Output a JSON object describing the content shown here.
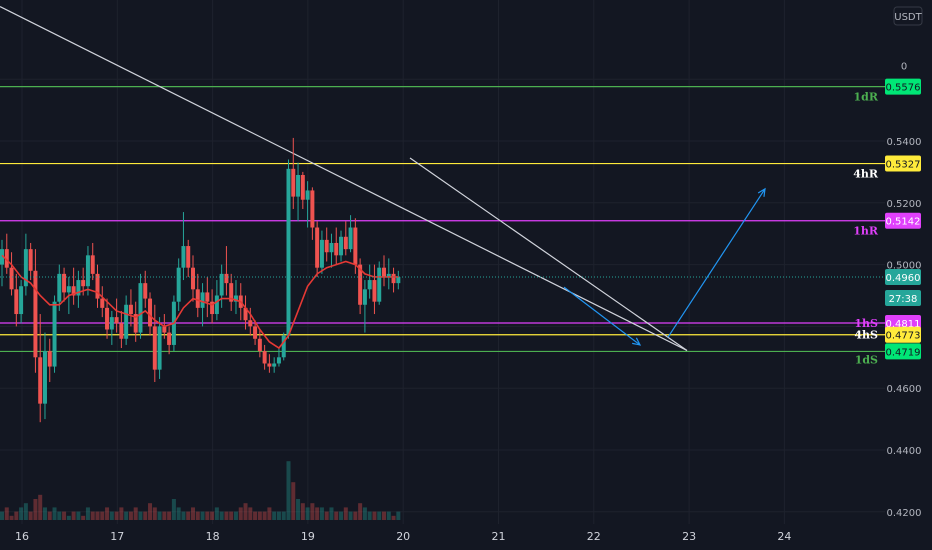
{
  "currency": "USDT",
  "chart_data": {
    "type": "candlestick",
    "x_ticks": [
      "16",
      "17",
      "18",
      "19",
      "20",
      "21",
      "22",
      "23",
      "24"
    ],
    "y_ticks": [
      "0.4200",
      "0.4400",
      "0.4600",
      "0.5000",
      "0.5200",
      "0.5400"
    ],
    "y_partial_top": "0",
    "ylim": [
      0.418,
      0.586
    ],
    "grid": true,
    "last_price": "0.4960",
    "countdown": "27:38",
    "levels": [
      {
        "key": "1dR",
        "price": 0.5576,
        "label": "0.5576",
        "zone": "1dR",
        "color": "#4caf50",
        "badge_bg": "#00e676",
        "badge_fg": "#131722"
      },
      {
        "key": "4hR",
        "price": 0.5327,
        "label": "0.5327",
        "zone": "4hR",
        "color": "#ffeb3b",
        "badge_bg": "#ffeb3b",
        "badge_fg": "#131722"
      },
      {
        "key": "1hR",
        "price": 0.5142,
        "label": "0.5142",
        "zone": "1hR",
        "color": "#e040fb",
        "badge_bg": "#e040fb",
        "badge_fg": "#ffffff"
      },
      {
        "key": "1hS",
        "price": 0.4811,
        "label": "0.4811",
        "zone": "1hS",
        "color": "#e040fb",
        "badge_bg": "#e040fb",
        "badge_fg": "#ffffff"
      },
      {
        "key": "4hS",
        "price": 0.4773,
        "label": "0.4773",
        "zone": "4hS",
        "color": "#ffeb3b",
        "badge_bg": "#ffeb3b",
        "badge_fg": "#131722"
      },
      {
        "key": "1dS",
        "price": 0.4719,
        "label": "0.4719",
        "zone": "1dS",
        "color": "#4caf50",
        "badge_bg": "#00e676",
        "badge_fg": "#131722"
      }
    ],
    "ohlc": [
      [
        0,
        0.5,
        0.508,
        0.493,
        0.505
      ],
      [
        0.5,
        0.505,
        0.51,
        0.497,
        0.499
      ],
      [
        1,
        0.499,
        0.504,
        0.49,
        0.492
      ],
      [
        1.5,
        0.492,
        0.497,
        0.48,
        0.484
      ],
      [
        2,
        0.484,
        0.495,
        0.481,
        0.493
      ],
      [
        2.5,
        0.493,
        0.51,
        0.49,
        0.505
      ],
      [
        3,
        0.505,
        0.507,
        0.495,
        0.498
      ],
      [
        3.5,
        0.498,
        0.505,
        0.465,
        0.47
      ],
      [
        4,
        0.47,
        0.484,
        0.449,
        0.455
      ],
      [
        4.5,
        0.455,
        0.478,
        0.45,
        0.472
      ],
      [
        5,
        0.472,
        0.476,
        0.462,
        0.467
      ],
      [
        5.5,
        0.467,
        0.49,
        0.465,
        0.488
      ],
      [
        6,
        0.488,
        0.5,
        0.485,
        0.497
      ],
      [
        6.5,
        0.497,
        0.499,
        0.488,
        0.491
      ],
      [
        7,
        0.491,
        0.496,
        0.484,
        0.493
      ],
      [
        7.5,
        0.493,
        0.499,
        0.487,
        0.49
      ],
      [
        8,
        0.49,
        0.498,
        0.486,
        0.495
      ],
      [
        8.5,
        0.495,
        0.499,
        0.49,
        0.493
      ],
      [
        9,
        0.493,
        0.506,
        0.49,
        0.503
      ],
      [
        9.5,
        0.503,
        0.507,
        0.495,
        0.497
      ],
      [
        10,
        0.497,
        0.5,
        0.486,
        0.489
      ],
      [
        10.5,
        0.489,
        0.493,
        0.483,
        0.486
      ],
      [
        11,
        0.486,
        0.489,
        0.476,
        0.479
      ],
      [
        11.5,
        0.479,
        0.485,
        0.474,
        0.483
      ],
      [
        12,
        0.483,
        0.489,
        0.478,
        0.481
      ],
      [
        12.5,
        0.481,
        0.485,
        0.473,
        0.476
      ],
      [
        13,
        0.476,
        0.49,
        0.474,
        0.487
      ],
      [
        13.5,
        0.487,
        0.492,
        0.48,
        0.484
      ],
      [
        14,
        0.484,
        0.488,
        0.475,
        0.478
      ],
      [
        14.5,
        0.478,
        0.497,
        0.476,
        0.494
      ],
      [
        15,
        0.494,
        0.498,
        0.486,
        0.489
      ],
      [
        15.5,
        0.489,
        0.491,
        0.477,
        0.48
      ],
      [
        16,
        0.48,
        0.487,
        0.462,
        0.466
      ],
      [
        16.5,
        0.466,
        0.483,
        0.463,
        0.48
      ],
      [
        17,
        0.48,
        0.484,
        0.476,
        0.478
      ],
      [
        17.5,
        0.478,
        0.48,
        0.471,
        0.474
      ],
      [
        18,
        0.474,
        0.49,
        0.472,
        0.488
      ],
      [
        18.5,
        0.488,
        0.502,
        0.485,
        0.499
      ],
      [
        19,
        0.499,
        0.517,
        0.495,
        0.506
      ],
      [
        19.5,
        0.506,
        0.508,
        0.496,
        0.499
      ],
      [
        20,
        0.499,
        0.503,
        0.488,
        0.492
      ],
      [
        20.5,
        0.492,
        0.497,
        0.483,
        0.486
      ],
      [
        21,
        0.486,
        0.494,
        0.48,
        0.491
      ],
      [
        21.5,
        0.491,
        0.496,
        0.483,
        0.488
      ],
      [
        22,
        0.488,
        0.492,
        0.481,
        0.484
      ],
      [
        22.5,
        0.484,
        0.495,
        0.482,
        0.49
      ],
      [
        23,
        0.49,
        0.5,
        0.486,
        0.497
      ],
      [
        23.5,
        0.497,
        0.506,
        0.49,
        0.494
      ],
      [
        24,
        0.494,
        0.497,
        0.485,
        0.488
      ],
      [
        24.5,
        0.488,
        0.495,
        0.484,
        0.49
      ],
      [
        25,
        0.49,
        0.494,
        0.482,
        0.486
      ],
      [
        25.5,
        0.486,
        0.49,
        0.479,
        0.482
      ],
      [
        26,
        0.482,
        0.486,
        0.477,
        0.48
      ],
      [
        26.5,
        0.48,
        0.482,
        0.474,
        0.476
      ],
      [
        27,
        0.476,
        0.479,
        0.47,
        0.472
      ],
      [
        27.5,
        0.472,
        0.474,
        0.466,
        0.468
      ],
      [
        28,
        0.468,
        0.471,
        0.465,
        0.467
      ],
      [
        28.5,
        0.467,
        0.47,
        0.465,
        0.468
      ],
      [
        29,
        0.468,
        0.473,
        0.467,
        0.47
      ],
      [
        29.5,
        0.47,
        0.478,
        0.469,
        0.477
      ],
      [
        30,
        0.477,
        0.534,
        0.476,
        0.531
      ],
      [
        30.5,
        0.531,
        0.541,
        0.518,
        0.522
      ],
      [
        31,
        0.522,
        0.533,
        0.514,
        0.529
      ],
      [
        31.5,
        0.529,
        0.53,
        0.518,
        0.521
      ],
      [
        32,
        0.521,
        0.527,
        0.512,
        0.524
      ],
      [
        32.5,
        0.524,
        0.525,
        0.508,
        0.512
      ],
      [
        33,
        0.512,
        0.514,
        0.496,
        0.499
      ],
      [
        33.5,
        0.499,
        0.511,
        0.497,
        0.508
      ],
      [
        34,
        0.508,
        0.512,
        0.501,
        0.504
      ],
      [
        34.5,
        0.504,
        0.51,
        0.499,
        0.507
      ],
      [
        35,
        0.507,
        0.512,
        0.5,
        0.503
      ],
      [
        35.5,
        0.503,
        0.511,
        0.501,
        0.509
      ],
      [
        36,
        0.509,
        0.514,
        0.503,
        0.505
      ],
      [
        36.5,
        0.505,
        0.516,
        0.504,
        0.512
      ],
      [
        37,
        0.512,
        0.515,
        0.497,
        0.5
      ],
      [
        37.5,
        0.5,
        0.502,
        0.484,
        0.487
      ],
      [
        38,
        0.487,
        0.495,
        0.478,
        0.492
      ],
      [
        38.5,
        0.492,
        0.5,
        0.489,
        0.495
      ],
      [
        39,
        0.495,
        0.5,
        0.484,
        0.488
      ],
      [
        39.5,
        0.488,
        0.501,
        0.487,
        0.499
      ],
      [
        40,
        0.499,
        0.503,
        0.493,
        0.496
      ],
      [
        40.5,
        0.496,
        0.502,
        0.492,
        0.497
      ],
      [
        41,
        0.497,
        0.499,
        0.491,
        0.494
      ],
      [
        41.5,
        0.494,
        0.498,
        0.492,
        0.496
      ]
    ],
    "ema": [
      [
        0,
        0.503
      ],
      [
        1,
        0.5
      ],
      [
        2,
        0.496
      ],
      [
        3,
        0.494
      ],
      [
        4,
        0.49
      ],
      [
        5,
        0.487
      ],
      [
        6,
        0.487
      ],
      [
        7,
        0.49
      ],
      [
        8,
        0.491
      ],
      [
        9,
        0.492
      ],
      [
        10,
        0.491
      ],
      [
        11,
        0.488
      ],
      [
        12,
        0.485
      ],
      [
        13,
        0.484
      ],
      [
        14,
        0.483
      ],
      [
        15,
        0.485
      ],
      [
        16,
        0.482
      ],
      [
        17,
        0.48
      ],
      [
        18,
        0.481
      ],
      [
        19,
        0.486
      ],
      [
        20,
        0.489
      ],
      [
        21,
        0.488
      ],
      [
        22,
        0.487
      ],
      [
        23,
        0.489
      ],
      [
        24,
        0.489
      ],
      [
        25,
        0.488
      ],
      [
        26,
        0.484
      ],
      [
        27,
        0.479
      ],
      [
        28,
        0.475
      ],
      [
        29,
        0.473
      ],
      [
        30,
        0.477
      ],
      [
        31,
        0.485
      ],
      [
        32,
        0.493
      ],
      [
        33,
        0.497
      ],
      [
        34,
        0.499
      ],
      [
        35,
        0.5
      ],
      [
        36,
        0.501
      ],
      [
        37,
        0.5
      ],
      [
        38,
        0.497
      ],
      [
        39,
        0.496
      ],
      [
        40,
        0.496
      ],
      [
        41.5,
        0.496
      ]
    ],
    "volume": [
      2,
      3,
      1,
      2,
      3,
      4,
      2,
      5,
      6,
      3,
      2,
      3,
      2,
      2,
      1,
      2,
      2,
      1,
      3,
      2,
      2,
      2,
      3,
      2,
      2,
      3,
      2,
      2,
      3,
      2,
      2,
      4,
      3,
      2,
      2,
      2,
      5,
      3,
      2,
      2,
      3,
      2,
      2,
      2,
      2,
      3,
      2,
      2,
      2,
      2,
      3,
      4,
      3,
      2,
      2,
      2,
      3,
      2,
      2,
      2,
      14,
      9,
      5,
      4,
      3,
      4,
      3,
      3,
      2,
      3,
      2,
      2,
      3,
      2,
      2,
      4,
      3,
      2,
      2,
      2,
      2,
      2,
      1,
      2
    ]
  }
}
